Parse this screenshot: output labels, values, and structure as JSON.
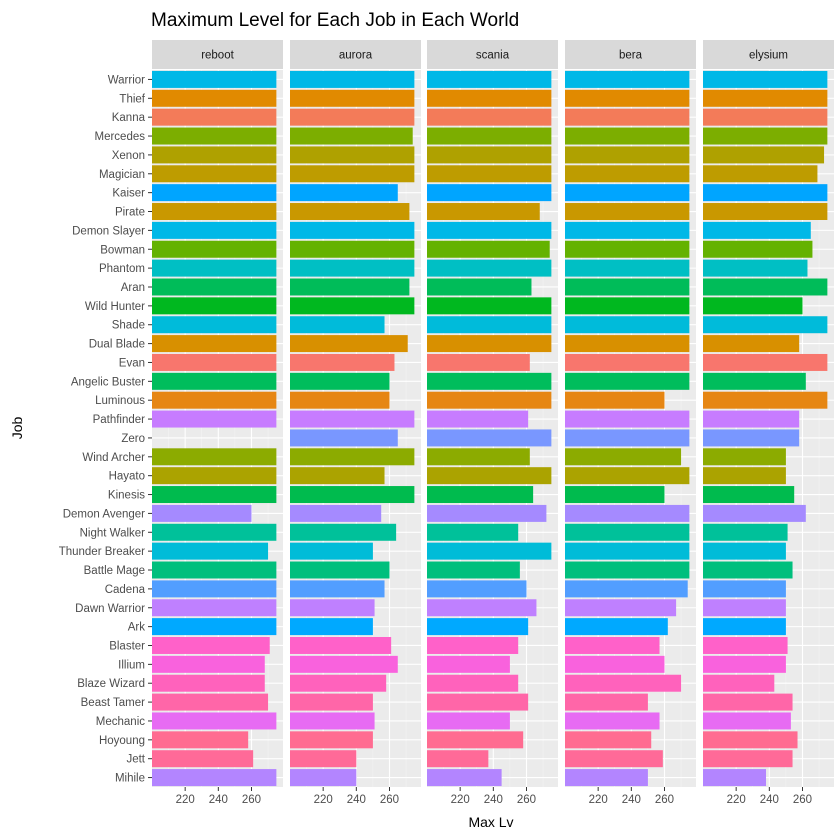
{
  "chart_data": {
    "type": "bar",
    "orientation": "horizontal",
    "faceted": true,
    "title": "Maximum Level for Each Job in Each World",
    "xlabel": "Max Lv",
    "ylabel": "Job",
    "xlim": [
      200,
      279
    ],
    "x_ticks": [
      220,
      240,
      260
    ],
    "grid": true,
    "legend": "none",
    "categories": [
      "Warrior",
      "Thief",
      "Kanna",
      "Mercedes",
      "Xenon",
      "Magician",
      "Kaiser",
      "Pirate",
      "Demon Slayer",
      "Bowman",
      "Phantom",
      "Aran",
      "Wild Hunter",
      "Shade",
      "Dual Blade",
      "Evan",
      "Angelic Buster",
      "Luminous",
      "Pathfinder",
      "Zero",
      "Wind Archer",
      "Hayato",
      "Kinesis",
      "Demon Avenger",
      "Night Walker",
      "Thunder Breaker",
      "Battle Mage",
      "Cadena",
      "Dawn Warrior",
      "Ark",
      "Blaster",
      "Illium",
      "Blaze Wizard",
      "Beast Tamer",
      "Mechanic",
      "Hoyoung",
      "Jett",
      "Mihile"
    ],
    "colors": [
      "#00B8E7",
      "#E18A00",
      "#F37B59",
      "#7CAE00",
      "#AFA100",
      "#BE9C00",
      "#00A5FF",
      "#C99800",
      "#00B8E7",
      "#64B200",
      "#00BFC4",
      "#00BC59",
      "#00B81F",
      "#00BBDA",
      "#D89000",
      "#F8766D",
      "#00BD5C",
      "#E68613",
      "#C77CFF",
      "#7997FF",
      "#8CAB00",
      "#ABA300",
      "#00BB4E",
      "#A58AFF",
      "#00C19A",
      "#00BCD8",
      "#00BF7D",
      "#529EFF",
      "#BF80FF",
      "#00A9FF",
      "#FF61C9",
      "#F962DD",
      "#FF62BC",
      "#FF66A8",
      "#E76BF3",
      "#FF6C91",
      "#FF6A98",
      "#B385FF"
    ],
    "series": [
      {
        "name": "reboot",
        "values": [
          275,
          275,
          275,
          275,
          275,
          275,
          275,
          275,
          275,
          275,
          275,
          275,
          275,
          275,
          275,
          275,
          275,
          275,
          275,
          null,
          275,
          275,
          275,
          260,
          275,
          270,
          275,
          275,
          275,
          275,
          271,
          268,
          268,
          270,
          275,
          258,
          261,
          275
        ]
      },
      {
        "name": "aurora",
        "values": [
          275,
          275,
          275,
          274,
          275,
          275,
          265,
          272,
          275,
          275,
          275,
          272,
          275,
          257,
          271,
          263,
          260,
          260,
          275,
          265,
          275,
          257,
          275,
          255,
          264,
          250,
          260,
          257,
          251,
          250,
          261,
          265,
          258,
          250,
          251,
          250,
          240,
          240
        ]
      },
      {
        "name": "scania",
        "values": [
          275,
          275,
          275,
          275,
          275,
          275,
          275,
          268,
          275,
          274,
          275,
          263,
          275,
          275,
          275,
          262,
          275,
          275,
          261,
          275,
          262,
          275,
          264,
          272,
          255,
          275,
          256,
          260,
          266,
          261,
          255,
          250,
          255,
          261,
          250,
          258,
          237,
          245
        ]
      },
      {
        "name": "bera",
        "values": [
          275,
          275,
          275,
          275,
          275,
          275,
          275,
          275,
          275,
          275,
          275,
          275,
          275,
          275,
          275,
          275,
          275,
          260,
          275,
          275,
          270,
          275,
          260,
          275,
          275,
          275,
          275,
          274,
          267,
          262,
          257,
          260,
          270,
          250,
          257,
          252,
          259,
          250
        ]
      },
      {
        "name": "elysium",
        "values": [
          275,
          275,
          275,
          275,
          273,
          269,
          275,
          275,
          265,
          266,
          263,
          275,
          260,
          275,
          258,
          275,
          262,
          275,
          258,
          258,
          250,
          250,
          255,
          262,
          251,
          250,
          254,
          250,
          250,
          250,
          251,
          250,
          243,
          254,
          253,
          257,
          254,
          238
        ]
      }
    ]
  }
}
